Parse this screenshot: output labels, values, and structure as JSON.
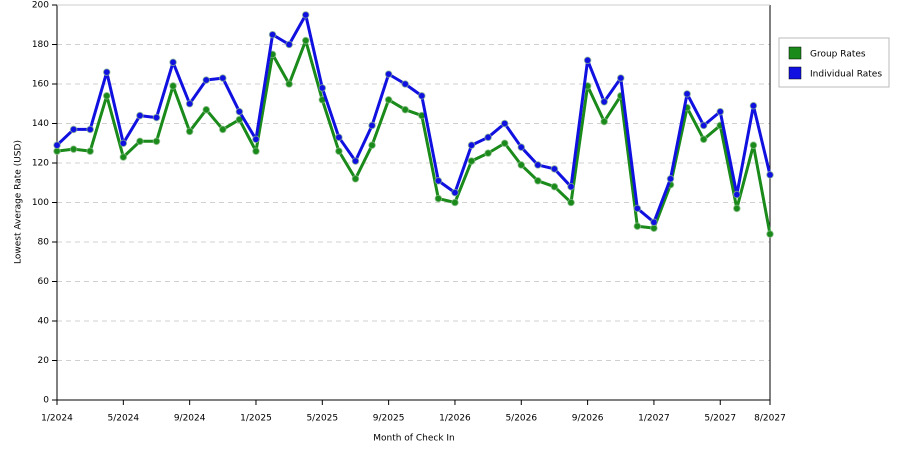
{
  "chart_data": {
    "type": "line",
    "x_label": "Month of Check In",
    "y_label": "Lowest Average Rate (USD)",
    "categories": [
      "1/2024",
      null,
      null,
      null,
      "5/2024",
      null,
      null,
      null,
      "9/2024",
      null,
      null,
      null,
      "1/2025",
      null,
      null,
      null,
      "5/2025",
      null,
      null,
      null,
      "9/2025",
      null,
      null,
      null,
      "1/2026",
      null,
      null,
      null,
      "5/2026",
      null,
      null,
      null,
      "9/2026",
      null,
      null,
      null,
      "1/2027",
      null,
      null,
      null,
      "5/2027",
      null,
      null,
      "8/2027"
    ],
    "series": [
      {
        "name": "Group Rates",
        "color": "#1a8a1a",
        "values": [
          126,
          127,
          126,
          154,
          123,
          131,
          131,
          159,
          136,
          147,
          137,
          142,
          126,
          175,
          160,
          182,
          152,
          126,
          112,
          129,
          152,
          147,
          144,
          102,
          100,
          121,
          125,
          130,
          119,
          111,
          108,
          100,
          159,
          141,
          154,
          88,
          87,
          109,
          148,
          132,
          139,
          97,
          129,
          84
        ]
      },
      {
        "name": "Individual Rates",
        "color": "#1010e0",
        "values": [
          129,
          137,
          137,
          166,
          130,
          144,
          143,
          171,
          150,
          162,
          163,
          146,
          132,
          185,
          180,
          195,
          158,
          133,
          121,
          139,
          165,
          160,
          154,
          111,
          105,
          129,
          133,
          140,
          128,
          119,
          117,
          108,
          172,
          151,
          163,
          97,
          90,
          112,
          155,
          139,
          146,
          104,
          149,
          114
        ]
      }
    ],
    "ylim": [
      0,
      200
    ],
    "yticks": [
      0,
      20,
      40,
      60,
      80,
      100,
      120,
      140,
      160,
      180,
      200
    ],
    "grid": true,
    "legend": "right"
  }
}
